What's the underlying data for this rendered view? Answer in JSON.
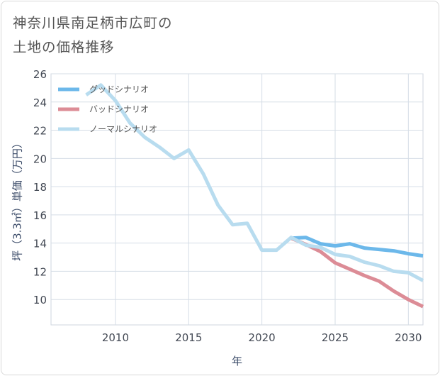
{
  "title": {
    "line1": "神奈川県南足柄市広町の",
    "line2": "土地の価格推移"
  },
  "chart_data": {
    "type": "line",
    "xlabel": "年",
    "ylabel": "坪（3.3㎡）単価（万円）",
    "xlim": [
      2005.6,
      2031
    ],
    "ylim": [
      8.2,
      26
    ],
    "xticks": [
      2010,
      2015,
      2020,
      2025,
      2030
    ],
    "yticks": [
      10,
      12,
      14,
      16,
      18,
      20,
      22,
      24,
      26
    ],
    "grid": true,
    "legend_position": "top-left",
    "series": [
      {
        "name": "グッドシナリオ",
        "color": "#6cb8ea",
        "x": [
          2022,
          2023,
          2024,
          2025,
          2026,
          2027,
          2028,
          2029,
          2030,
          2031
        ],
        "y": [
          14.35,
          14.4,
          13.95,
          13.8,
          13.95,
          13.65,
          13.55,
          13.45,
          13.25,
          13.1
        ]
      },
      {
        "name": "バッドシナリオ",
        "color": "#dc8c96",
        "x": [
          2022,
          2023,
          2024,
          2025,
          2026,
          2027,
          2028,
          2029,
          2030,
          2031
        ],
        "y": [
          14.35,
          13.9,
          13.4,
          12.6,
          12.15,
          11.7,
          11.3,
          10.6,
          10.0,
          9.5
        ]
      },
      {
        "name": "ノーマルシナリオ",
        "color": "#b8dcef",
        "x": [
          2008,
          2009,
          2010,
          2011,
          2012,
          2013,
          2014,
          2015,
          2016,
          2017,
          2018,
          2019,
          2020,
          2021,
          2022,
          2023,
          2024,
          2025,
          2026,
          2027,
          2028,
          2029,
          2030,
          2031
        ],
        "y": [
          24.5,
          25.2,
          24.1,
          22.5,
          21.5,
          20.8,
          20.0,
          20.6,
          18.9,
          16.7,
          15.3,
          15.4,
          13.5,
          13.5,
          14.4,
          13.85,
          13.7,
          13.2,
          13.05,
          12.65,
          12.4,
          12.0,
          11.9,
          11.35
        ]
      }
    ]
  }
}
